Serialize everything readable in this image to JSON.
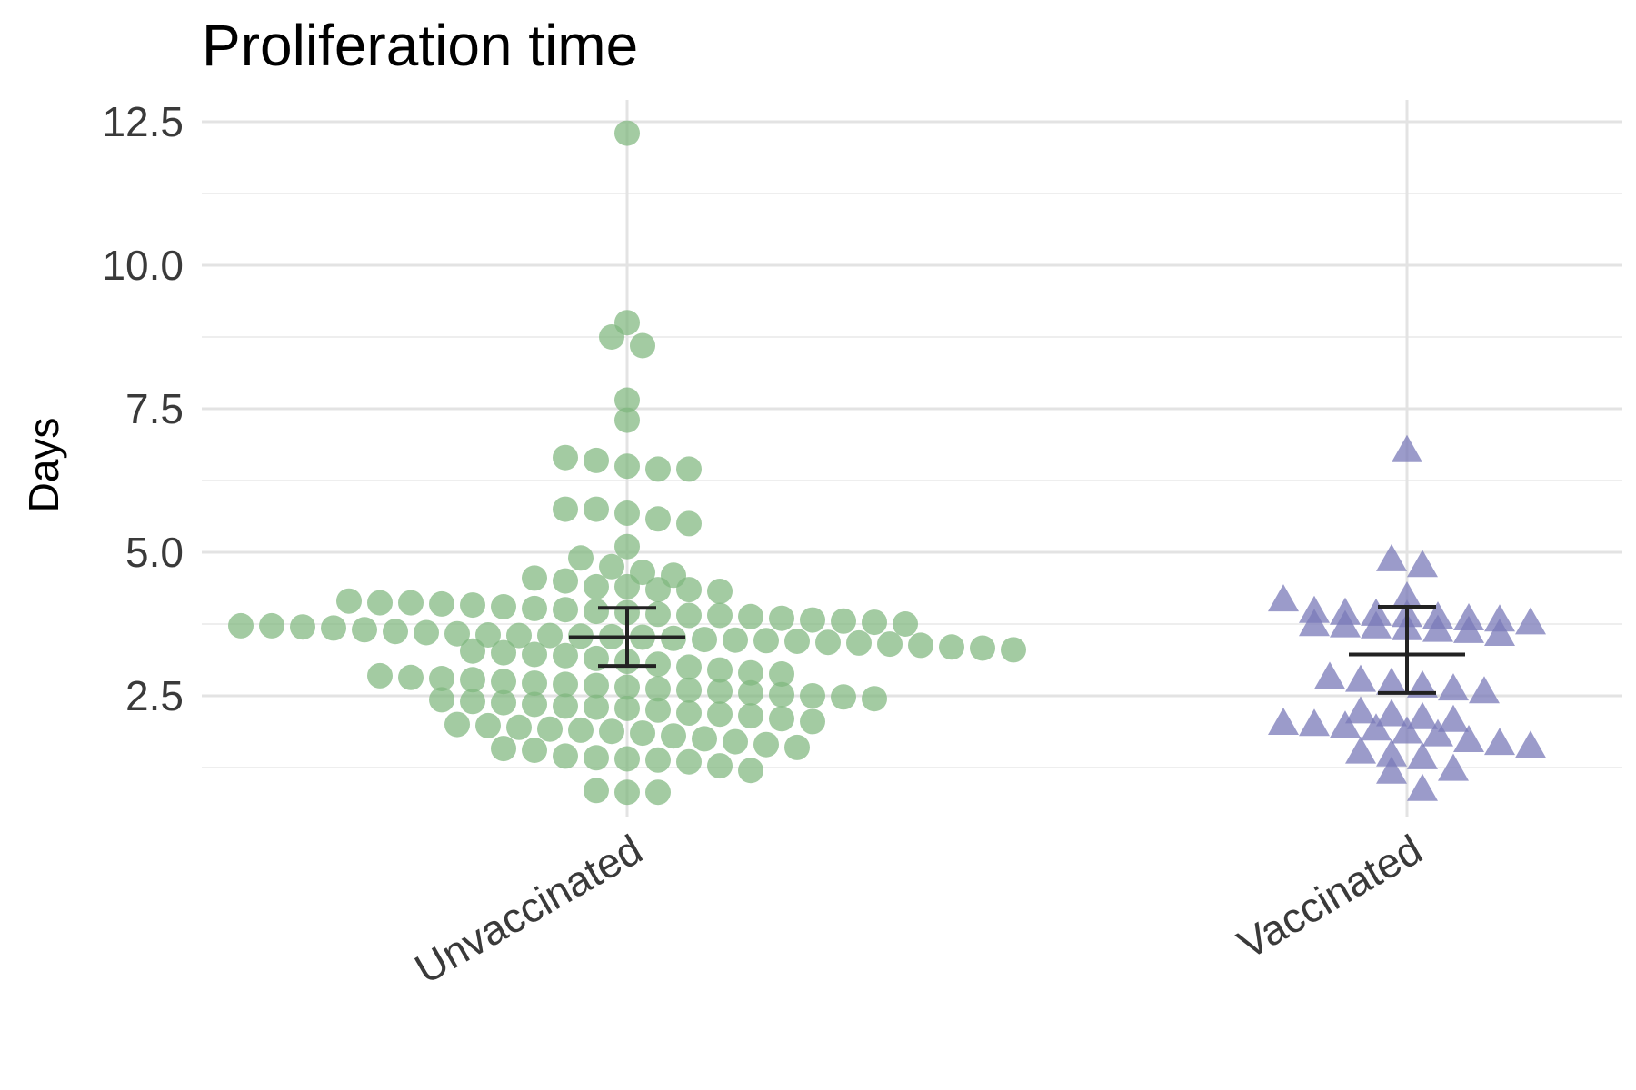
{
  "chart_data": {
    "type": "scatter",
    "title": "Proliferation time",
    "xlabel": "",
    "ylabel": "Days",
    "categories": [
      "Unvaccinated",
      "Vaccinated"
    ],
    "y_ticks": [
      "2.5",
      "5.0",
      "7.5",
      "10.0",
      "12.5"
    ],
    "ylim": [
      0.5,
      12.8
    ],
    "grid": true,
    "legend": "none",
    "colors": {
      "Unvaccinated": "#7fb77e",
      "Vaccinated": "#7a7ab8",
      "errbar": "#222222"
    },
    "series": [
      {
        "category": "Unvaccinated",
        "marker": "circle",
        "values": [
          12.3,
          9.0,
          8.75,
          8.6,
          7.65,
          7.3,
          6.65,
          6.6,
          6.5,
          6.45,
          6.45,
          5.75,
          5.75,
          5.68,
          5.58,
          5.5,
          5.1,
          4.9,
          4.75,
          4.65,
          4.6,
          4.55,
          4.5,
          4.4,
          4.4,
          4.35,
          4.35,
          4.32,
          4.15,
          4.12,
          4.12,
          4.1,
          4.08,
          4.05,
          4.02,
          4.0,
          3.97,
          3.95,
          3.92,
          3.9,
          3.9,
          3.88,
          3.85,
          3.82,
          3.8,
          3.78,
          3.75,
          3.72,
          3.72,
          3.7,
          3.68,
          3.65,
          3.62,
          3.6,
          3.58,
          3.56,
          3.55,
          3.55,
          3.54,
          3.53,
          3.52,
          3.5,
          3.48,
          3.47,
          3.46,
          3.45,
          3.43,
          3.42,
          3.4,
          3.38,
          3.35,
          3.33,
          3.3,
          3.28,
          3.25,
          3.22,
          3.2,
          3.15,
          3.1,
          3.05,
          3.0,
          2.95,
          2.9,
          2.88,
          2.85,
          2.82,
          2.8,
          2.78,
          2.75,
          2.72,
          2.7,
          2.68,
          2.65,
          2.62,
          2.6,
          2.58,
          2.55,
          2.52,
          2.5,
          2.48,
          2.45,
          2.43,
          2.4,
          2.38,
          2.35,
          2.32,
          2.3,
          2.28,
          2.25,
          2.2,
          2.18,
          2.15,
          2.1,
          2.05,
          2.0,
          1.98,
          1.95,
          1.92,
          1.9,
          1.88,
          1.85,
          1.8,
          1.75,
          1.7,
          1.65,
          1.6,
          1.58,
          1.55,
          1.45,
          1.42,
          1.4,
          1.38,
          1.35,
          1.28,
          1.2,
          0.85,
          0.82,
          0.82
        ],
        "mean": 3.52,
        "error_low": 3.02,
        "error_high": 4.03
      },
      {
        "category": "Vaccinated",
        "marker": "triangle",
        "values": [
          6.75,
          4.85,
          4.75,
          4.2,
          4.15,
          3.95,
          3.92,
          3.9,
          3.88,
          3.85,
          3.82,
          3.8,
          3.75,
          3.72,
          3.7,
          3.68,
          3.65,
          3.62,
          3.6,
          3.55,
          2.8,
          2.75,
          2.7,
          2.65,
          2.6,
          2.55,
          2.2,
          2.15,
          2.1,
          2.05,
          2.0,
          1.98,
          1.95,
          1.9,
          1.85,
          1.8,
          1.7,
          1.65,
          1.6,
          1.5,
          1.45,
          1.4,
          1.2,
          1.15,
          0.85
        ],
        "mean": 3.22,
        "error_low": 2.55,
        "error_high": 4.05
      }
    ]
  }
}
